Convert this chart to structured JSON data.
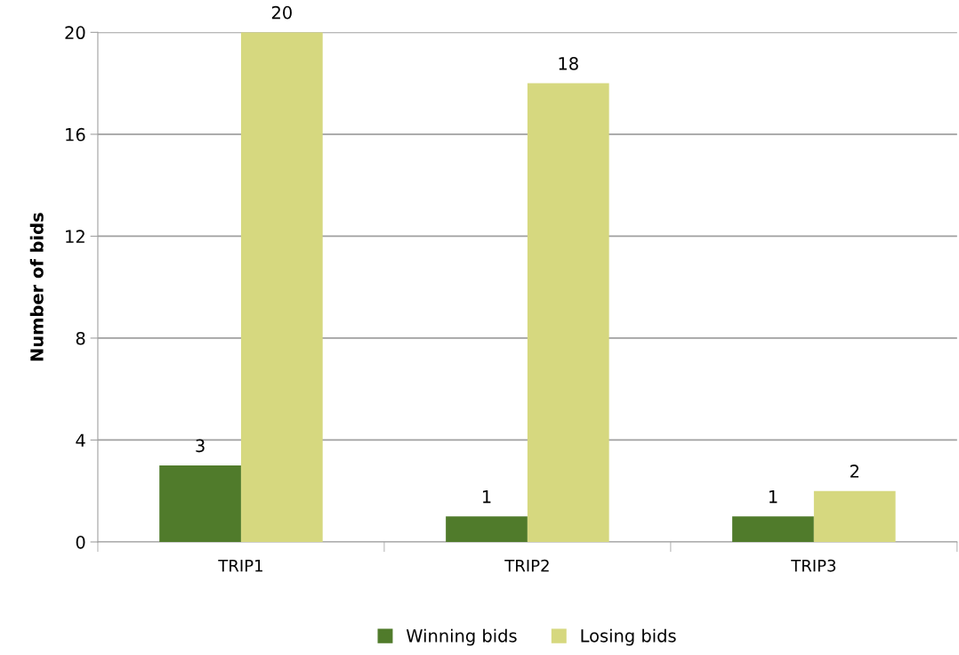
{
  "chart_data": {
    "type": "bar",
    "ylabel": "Number of bids",
    "categories": [
      "TRIP1",
      "TRIP2",
      "TRIP3"
    ],
    "series": [
      {
        "name": "Winning bids",
        "color": "#507b2b",
        "values": [
          3,
          1,
          1
        ]
      },
      {
        "name": "Losing bids",
        "color": "#d6d87f",
        "values": [
          20,
          18,
          2
        ]
      }
    ],
    "ylim": [
      0,
      20
    ],
    "yticks": [
      0,
      4,
      8,
      12,
      16,
      20
    ],
    "grid": "y",
    "legend": "bottom",
    "data_labels": true
  }
}
